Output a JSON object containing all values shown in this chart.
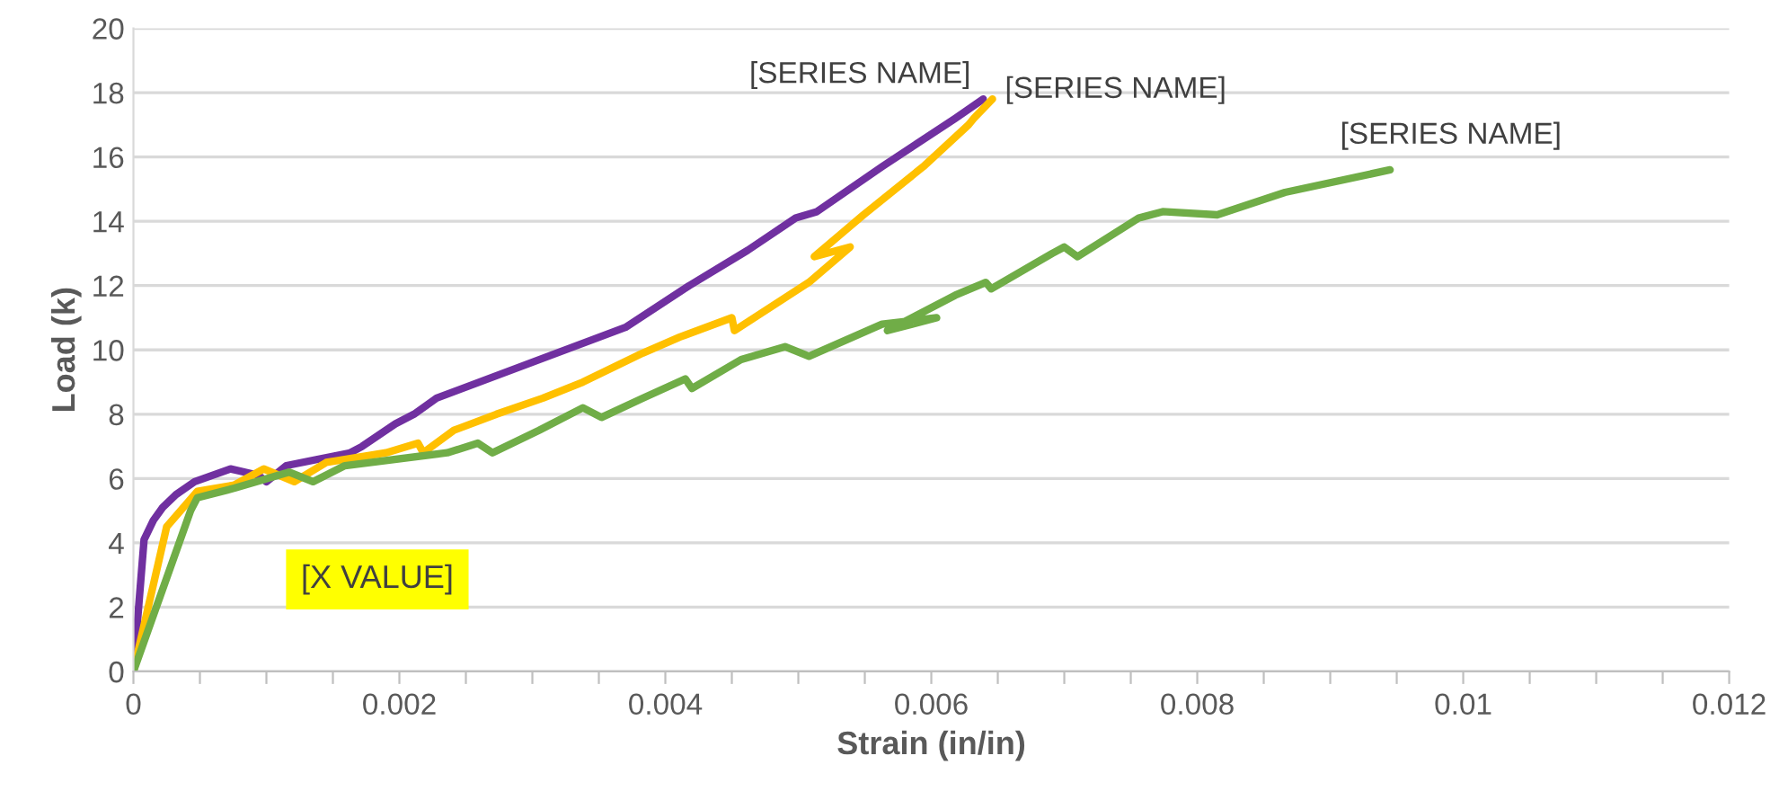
{
  "chart_data": {
    "type": "line",
    "xlabel": "Strain (in/in)",
    "ylabel": "Load (k)",
    "xlim": [
      0,
      0.012
    ],
    "ylim": [
      0,
      20
    ],
    "xticks": [
      0,
      {
        "value": 0.0005,
        "label": null
      },
      {
        "value": 0.001,
        "label": null
      },
      {
        "value": 0.0015,
        "label": null
      },
      0.002,
      {
        "value": 0.0025,
        "label": null
      },
      {
        "value": 0.003,
        "label": null
      },
      {
        "value": 0.0035,
        "label": null
      },
      0.004,
      {
        "value": 0.0045,
        "label": null
      },
      {
        "value": 0.005,
        "label": null
      },
      {
        "value": 0.0055,
        "label": null
      },
      0.006,
      {
        "value": 0.0065,
        "label": null
      },
      {
        "value": 0.007,
        "label": null
      },
      {
        "value": 0.0075,
        "label": null
      },
      0.008,
      {
        "value": 0.0085,
        "label": null
      },
      {
        "value": 0.009,
        "label": null
      },
      {
        "value": 0.0095,
        "label": null
      },
      0.01,
      {
        "value": 0.0105,
        "label": null
      },
      {
        "value": 0.011,
        "label": null
      },
      {
        "value": 0.0115,
        "label": null
      },
      0.012
    ],
    "yticks": [
      0,
      2,
      4,
      6,
      8,
      10,
      12,
      14,
      16,
      18,
      20
    ],
    "grid": "y",
    "legend": false,
    "marker": "none",
    "line_style": "solid",
    "annotations": [
      "[X VALUE]"
    ],
    "series": [
      {
        "name": "[SERIES NAME]",
        "color": "#7030a0",
        "x": [
          0,
          8e-05,
          0.00015,
          0.00022,
          0.00032,
          0.00046,
          0.00073,
          0.00094,
          0.001,
          0.00115,
          0.00163,
          0.00172,
          0.00197,
          0.00211,
          0.00228,
          0.0037,
          0.00418,
          0.00462,
          0.00498,
          0.00514,
          0.00563,
          0.00618,
          0.00639
        ],
        "values": [
          0,
          4.1,
          4.7,
          5.1,
          5.5,
          5.9,
          6.3,
          6.1,
          5.9,
          6.4,
          6.8,
          7.0,
          7.7,
          8.0,
          8.5,
          10.7,
          12.0,
          13.1,
          14.1,
          14.3,
          15.7,
          17.2,
          17.8
        ]
      },
      {
        "name": "[SERIES NAME]",
        "color": "#ffc000",
        "x": [
          0,
          0.00025,
          0.00048,
          0.00076,
          0.00098,
          0.00121,
          0.00145,
          0.0019,
          0.00214,
          0.00218,
          0.00241,
          0.00273,
          0.00308,
          0.00338,
          0.00383,
          0.00411,
          0.0045,
          0.00452,
          0.00508,
          0.00539,
          0.00512,
          0.00549,
          0.00594,
          0.00628,
          0.00632,
          0.00646
        ],
        "values": [
          0,
          4.5,
          5.6,
          5.8,
          6.3,
          5.9,
          6.5,
          6.8,
          7.1,
          6.8,
          7.5,
          8.0,
          8.5,
          9.0,
          9.9,
          10.4,
          11.0,
          10.6,
          12.1,
          13.2,
          12.9,
          14.2,
          15.7,
          17.0,
          17.2,
          17.8
        ]
      },
      {
        "name": "[SERIES NAME]",
        "color": "#70ad47",
        "x": [
          0,
          0.00043,
          0.00048,
          0.00076,
          0.00117,
          0.00135,
          0.00159,
          0.00236,
          0.00259,
          0.0027,
          0.00305,
          0.00338,
          0.00352,
          0.00383,
          0.00415,
          0.0042,
          0.00457,
          0.0049,
          0.00508,
          0.00563,
          0.00604,
          0.00567,
          0.00618,
          0.00641,
          0.00645,
          0.00691,
          0.007,
          0.0071,
          0.00756,
          0.00774,
          0.00815,
          0.00866,
          0.00945
        ],
        "values": [
          0,
          5.0,
          5.4,
          5.7,
          6.2,
          5.9,
          6.4,
          6.8,
          7.1,
          6.8,
          7.5,
          8.2,
          7.9,
          8.5,
          9.1,
          8.8,
          9.7,
          10.1,
          9.8,
          10.8,
          11.0,
          10.6,
          11.7,
          12.1,
          11.9,
          13.0,
          13.2,
          12.9,
          14.1,
          14.3,
          14.2,
          14.9,
          15.6
        ]
      }
    ]
  }
}
